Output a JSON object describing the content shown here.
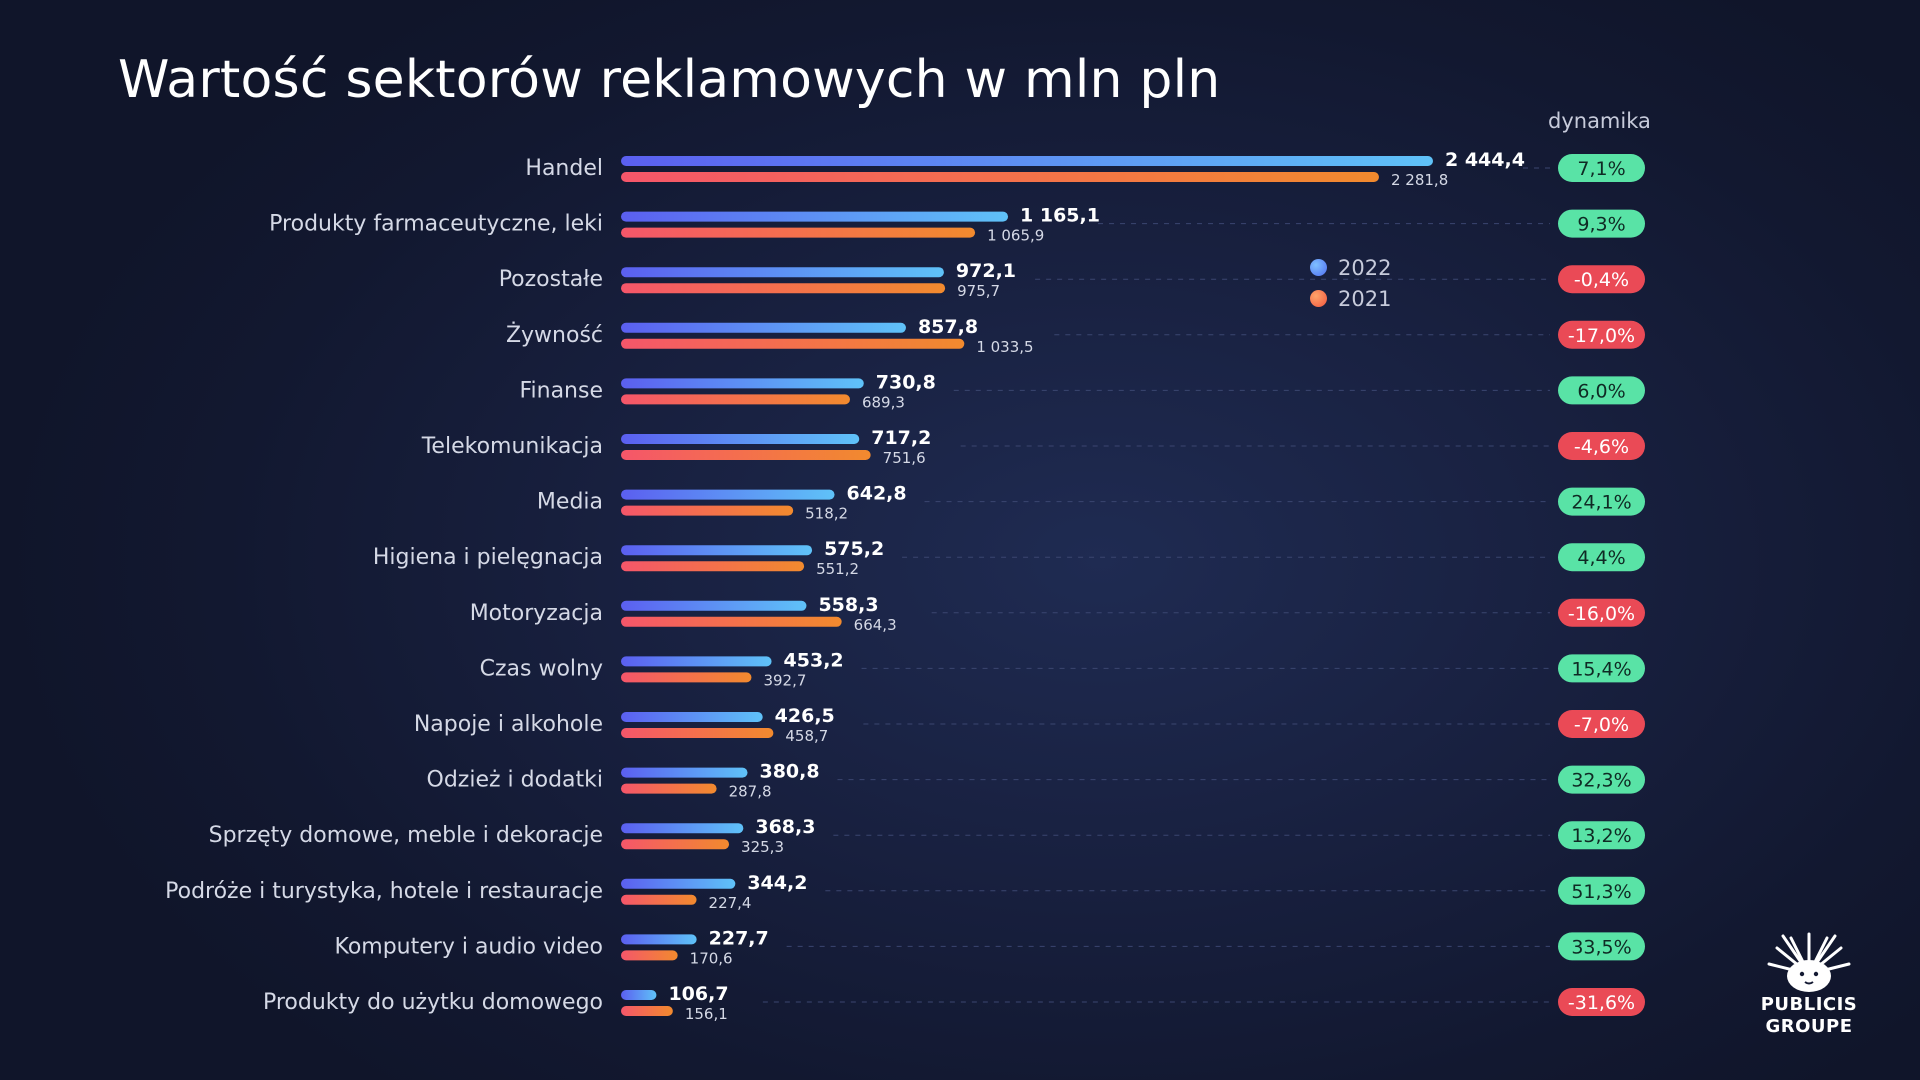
{
  "title": "Wartość sektorów reklamowych w mln pln",
  "dynamics_header": "dynamika",
  "legend": [
    {
      "label": "2022",
      "color": "#4f8ef7"
    },
    {
      "label": "2021",
      "color": "#f26b45"
    }
  ],
  "logo": {
    "line1": "PUBLICIS",
    "line2": "GROUPE"
  },
  "colors": {
    "bar_2022_start": "#5b5ff0",
    "bar_2022_end": "#5fc2f8",
    "bar_2021_start": "#f5566a",
    "bar_2021_end": "#f28a2e",
    "positive_badge": "#59e3a6",
    "negative_badge": "#ea4a56"
  },
  "chart_data": {
    "type": "bar",
    "orientation": "horizontal",
    "categories": [
      "Handel",
      "Produkty farmaceutyczne, leki",
      "Pozostałe",
      "Żywność",
      "Finanse",
      "Telekomunikacja",
      "Media",
      "Higiena i pielęgnacja",
      "Motoryzacja",
      "Czas wolny",
      "Napoje i alkohole",
      "Odzież i dodatki",
      "Sprzęty domowe, meble i dekoracje",
      "Podróże i turystyka, hotele i restauracje",
      "Komputery i audio video",
      "Produkty do użytku domowego"
    ],
    "series": [
      {
        "name": "2022",
        "values": [
          2444.4,
          1165.1,
          972.1,
          857.8,
          730.8,
          717.2,
          642.8,
          575.2,
          558.3,
          453.2,
          426.5,
          380.8,
          368.3,
          344.2,
          227.7,
          106.7
        ],
        "labels": [
          "2 444,4",
          "1 165,1",
          "972,1",
          "857,8",
          "730,8",
          "717,2",
          "642,8",
          "575,2",
          "558,3",
          "453,2",
          "426,5",
          "380,8",
          "368,3",
          "344,2",
          "227,7",
          "106,7"
        ]
      },
      {
        "name": "2021",
        "values": [
          2281.8,
          1065.9,
          975.7,
          1033.5,
          689.3,
          751.6,
          518.2,
          551.2,
          664.3,
          392.7,
          458.7,
          287.8,
          325.3,
          227.4,
          170.6,
          156.1
        ],
        "labels": [
          "2 281,8",
          "1 065,9",
          "975,7",
          "1 033,5",
          "689,3",
          "751,6",
          "518,2",
          "551,2",
          "664,3",
          "392,7",
          "458,7",
          "287,8",
          "325,3",
          "227,4",
          "170,6",
          "156,1"
        ]
      }
    ],
    "dynamics": [
      "7,1%",
      "9,3%",
      "-0,4%",
      "-17,0%",
      "6,0%",
      "-4,6%",
      "24,1%",
      "4,4%",
      "-16,0%",
      "15,4%",
      "-7,0%",
      "32,3%",
      "13,2%",
      "51,3%",
      "33,5%",
      "-31,6%"
    ],
    "dynamics_positive": [
      true,
      true,
      false,
      false,
      true,
      false,
      true,
      true,
      false,
      true,
      false,
      true,
      true,
      true,
      true,
      false
    ],
    "xlim": [
      0,
      2444.4
    ],
    "grid": "dashed row guides",
    "legend_position": "top-right"
  }
}
